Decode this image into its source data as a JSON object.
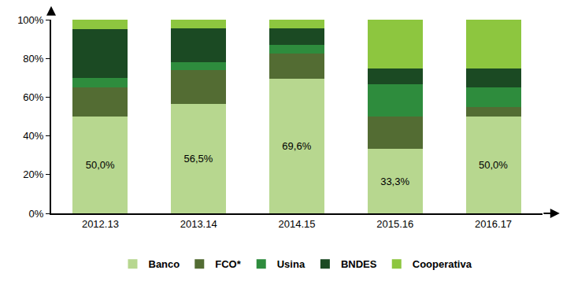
{
  "chart_data": {
    "type": "bar",
    "stacked": true,
    "grid": false,
    "legend": "bottom",
    "categories": [
      "2012.13",
      "2013.14",
      "2014.15",
      "2015.16",
      "2016.17"
    ],
    "ylim": [
      0,
      100
    ],
    "yticks": [
      {
        "value": 0,
        "label": "0%"
      },
      {
        "value": 20,
        "label": "20%"
      },
      {
        "value": 40,
        "label": "40%"
      },
      {
        "value": 60,
        "label": "60%"
      },
      {
        "value": 80,
        "label": "80%"
      },
      {
        "value": 100,
        "label": "100%"
      }
    ],
    "series": [
      {
        "name": "Banco",
        "color": "#b7d78f",
        "values": [
          50.0,
          56.5,
          69.6,
          33.3,
          50.0
        ],
        "data_labels": true,
        "value_labels": [
          "50,0%",
          "56,5%",
          "69,6%",
          "33,3%",
          "50,0%"
        ]
      },
      {
        "name": "FCO*",
        "color": "#536c33",
        "values": [
          15.0,
          17.4,
          13.0,
          16.7,
          5.0
        ]
      },
      {
        "name": "Usina",
        "color": "#2e8c3d",
        "values": [
          5.0,
          4.3,
          4.3,
          16.7,
          10.0
        ]
      },
      {
        "name": "BNDES",
        "color": "#1b4a23",
        "values": [
          25.0,
          17.4,
          8.7,
          8.3,
          10.0
        ]
      },
      {
        "name": "Cooperativa",
        "color": "#8dc63f",
        "values": [
          5.0,
          4.3,
          4.3,
          25.0,
          25.0
        ]
      }
    ]
  }
}
